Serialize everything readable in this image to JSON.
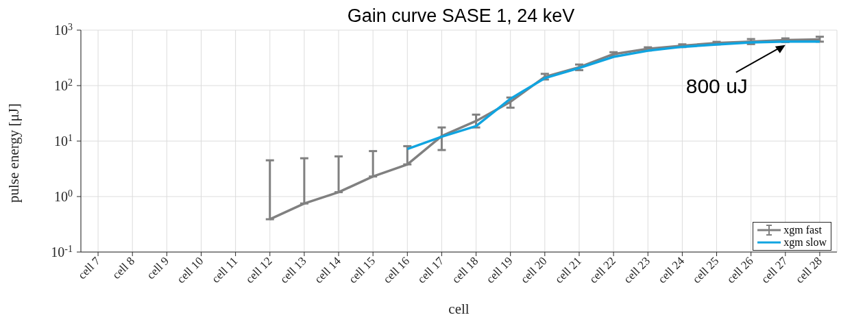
{
  "chart_data": {
    "type": "line",
    "title": "Gain curve SASE 1, 24 keV",
    "xlabel": "cell",
    "ylabel": "pulse energy [μJ]",
    "categories": [
      "cell 7",
      "cell 8",
      "cell 9",
      "cell 10",
      "cell 11",
      "cell 12",
      "cell 13",
      "cell 14",
      "cell 15",
      "cell 16",
      "cell 17",
      "cell 18",
      "cell 19",
      "cell 20",
      "cell 21",
      "cell 22",
      "cell 23",
      "cell 24",
      "cell 25",
      "cell 26",
      "cell 27",
      "cell 28"
    ],
    "series": [
      {
        "name": "xgm fast",
        "color": "#808080",
        "values": [
          null,
          null,
          null,
          null,
          null,
          0.39,
          0.75,
          1.2,
          2.3,
          3.8,
          12.3,
          23,
          51,
          144,
          215,
          370,
          460,
          525,
          585,
          620,
          660,
          680
        ],
        "errors": [
          null,
          null,
          null,
          null,
          null,
          [
            0.39,
            4.5
          ],
          [
            0.75,
            4.9
          ],
          [
            1.2,
            5.3
          ],
          [
            2.3,
            6.6
          ],
          [
            3.8,
            8.1
          ],
          [
            6.9,
            17.6
          ],
          [
            17.6,
            30
          ],
          [
            40,
            61
          ],
          [
            129,
            163
          ],
          [
            190,
            240
          ],
          [
            340,
            400
          ],
          [
            430,
            490
          ],
          [
            495,
            555
          ],
          [
            555,
            615
          ],
          [
            560,
            690
          ],
          [
            610,
            710
          ],
          [
            620,
            760
          ]
        ]
      },
      {
        "name": "xgm slow",
        "color": "#10a4e0",
        "values": [
          null,
          null,
          null,
          null,
          null,
          null,
          null,
          null,
          null,
          7.2,
          12,
          18.6,
          58,
          136,
          208,
          330,
          425,
          500,
          550,
          600,
          620,
          620
        ]
      }
    ],
    "ylim": [
      0.1,
      1000
    ],
    "yticks": [
      {
        "value": 0.1,
        "label": "10$^{-1}$"
      },
      {
        "value": 1,
        "label": "10$^{0}$"
      },
      {
        "value": 10,
        "label": "10$^{1}$"
      },
      {
        "value": 100,
        "label": "10$^{2}$"
      },
      {
        "value": 1000,
        "label": "10$^{3}$"
      }
    ],
    "log": true,
    "grid": true,
    "legend": "bottom right",
    "marker": "none",
    "line_style": "solid",
    "annotations": [
      {
        "text": "800 uJ",
        "x": "cell 27",
        "y": 540
      }
    ]
  }
}
